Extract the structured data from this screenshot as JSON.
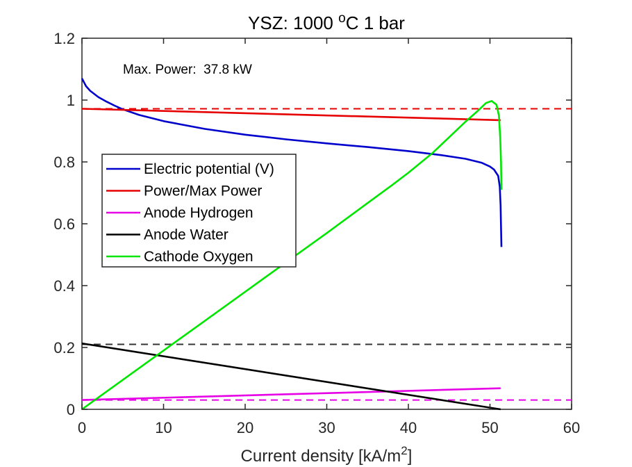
{
  "chart_data": {
    "type": "line",
    "title": {
      "main": "YSZ: 1000 ",
      "sup": "o",
      "rest": "C 1 bar"
    },
    "xlabel": {
      "main": "Current density [kA/m",
      "sup": "2",
      "rest": "]"
    },
    "ylabel": "",
    "xlim": [
      0,
      60
    ],
    "ylim": [
      0,
      1.2
    ],
    "xticks": [
      0,
      10,
      20,
      30,
      40,
      50,
      60
    ],
    "xtick_labels": [
      "0",
      "10",
      "20",
      "30",
      "40",
      "50",
      "60"
    ],
    "yticks": [
      0,
      0.2,
      0.4,
      0.6,
      0.8,
      1.0,
      1.2
    ],
    "ytick_labels": [
      "0",
      "0.2",
      "0.4",
      "0.6",
      "0.8",
      "1",
      "1.2"
    ],
    "grid": false,
    "legend_position": "center-left",
    "annotation": "Max. Power:  37.8 kW",
    "series": [
      {
        "name": "Electric potential (V)",
        "color": "#0000cc",
        "points": [
          [
            0,
            1.07
          ],
          [
            0.5,
            1.045
          ],
          [
            1,
            1.03
          ],
          [
            2,
            1.01
          ],
          [
            3,
            0.995
          ],
          [
            4,
            0.982
          ],
          [
            5,
            0.97
          ],
          [
            7,
            0.952
          ],
          [
            10,
            0.932
          ],
          [
            15,
            0.907
          ],
          [
            20,
            0.888
          ],
          [
            25,
            0.873
          ],
          [
            30,
            0.86
          ],
          [
            35,
            0.848
          ],
          [
            40,
            0.835
          ],
          [
            44,
            0.822
          ],
          [
            47,
            0.81
          ],
          [
            49,
            0.797
          ],
          [
            50,
            0.785
          ],
          [
            50.5,
            0.775
          ],
          [
            51,
            0.755
          ],
          [
            51.2,
            0.72
          ],
          [
            51.3,
            0.66
          ],
          [
            51.35,
            0.59
          ],
          [
            51.4,
            0.525
          ]
        ]
      },
      {
        "name": "Power/Max Power",
        "color": "#e60000",
        "points": [
          [
            0,
            0.972
          ],
          [
            51.3,
            0.935
          ]
        ]
      },
      {
        "name": "Anode Hydrogen",
        "color": "#e600e6",
        "points": [
          [
            0,
            0.03
          ],
          [
            51.3,
            0.068
          ]
        ]
      },
      {
        "name": "Anode Water",
        "color": "#000000",
        "points": [
          [
            0,
            0.213
          ],
          [
            51.3,
            0.0
          ]
        ]
      },
      {
        "name": "Cathode Oxygen",
        "color": "#00e600",
        "points": [
          [
            0,
            0.0
          ],
          [
            5,
            0.095
          ],
          [
            10,
            0.19
          ],
          [
            15,
            0.285
          ],
          [
            20,
            0.38
          ],
          [
            25,
            0.475
          ],
          [
            30,
            0.57
          ],
          [
            35,
            0.667
          ],
          [
            38,
            0.725
          ],
          [
            40,
            0.765
          ],
          [
            43,
            0.83
          ],
          [
            45,
            0.88
          ],
          [
            47,
            0.93
          ],
          [
            48.5,
            0.965
          ],
          [
            49.5,
            0.99
          ],
          [
            50.2,
            0.997
          ],
          [
            50.8,
            0.985
          ],
          [
            51.1,
            0.95
          ],
          [
            51.25,
            0.88
          ],
          [
            51.35,
            0.8
          ],
          [
            51.4,
            0.71
          ]
        ]
      }
    ],
    "reference_lines": [
      {
        "y": 0.972,
        "color": "#e60000",
        "style": "dashed"
      },
      {
        "y": 0.21,
        "color": "#333333",
        "style": "dashed"
      },
      {
        "y": 0.03,
        "color": "#e600e6",
        "style": "dashed"
      }
    ]
  }
}
